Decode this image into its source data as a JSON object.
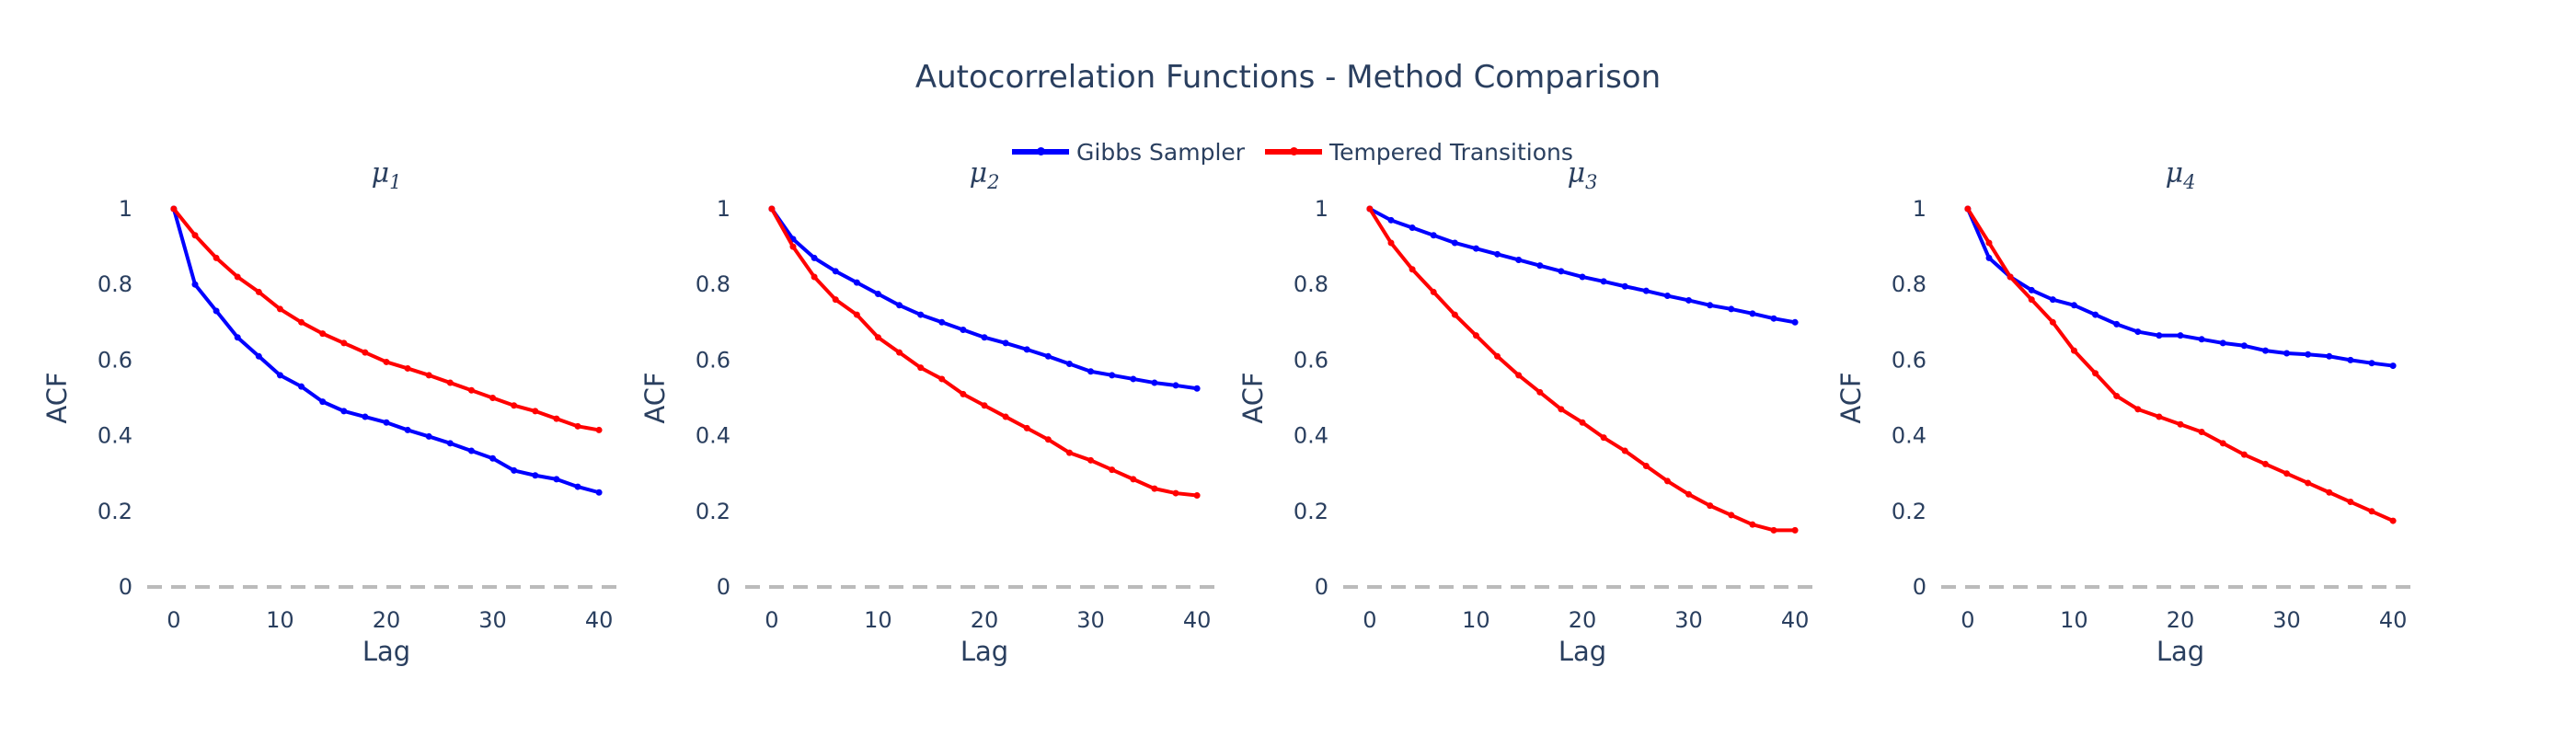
{
  "title": "Autocorrelation Functions - Method Comparison",
  "legend": [
    {
      "name": "Gibbs Sampler",
      "color": "#0000ff"
    },
    {
      "name": "Tempered Transitions",
      "color": "#ff0000"
    }
  ],
  "chart_data": {
    "type": "line",
    "x": [
      0,
      2,
      4,
      6,
      8,
      10,
      12,
      14,
      16,
      18,
      20,
      22,
      24,
      26,
      28,
      30,
      32,
      34,
      36,
      38,
      40
    ],
    "xlabel": "Lag",
    "ylabel": "ACF",
    "xlim": [
      -2.5,
      42.5
    ],
    "ylim": [
      0,
      1
    ],
    "xticks": [
      0,
      10,
      20,
      30,
      40
    ],
    "yticks": [
      0,
      0.2,
      0.4,
      0.6,
      0.8,
      1
    ],
    "ytick_labels": [
      "0",
      "0.2",
      "0.4",
      "0.6",
      "0.8",
      "1"
    ],
    "reference_line": {
      "y": 0,
      "style": "dashed",
      "color": "#bbbbbb"
    },
    "legend_position": "top-center",
    "grid": false,
    "subplots": [
      {
        "title": "μ1",
        "series": [
          {
            "name": "Gibbs Sampler",
            "color": "#0000ff",
            "values": [
              1.0,
              0.8,
              0.73,
              0.66,
              0.61,
              0.56,
              0.53,
              0.49,
              0.465,
              0.45,
              0.435,
              0.415,
              0.398,
              0.38,
              0.36,
              0.34,
              0.308,
              0.295,
              0.285,
              0.265,
              0.25
            ]
          },
          {
            "name": "Tempered Transitions",
            "color": "#ff0000",
            "values": [
              1.0,
              0.93,
              0.87,
              0.82,
              0.78,
              0.735,
              0.7,
              0.67,
              0.645,
              0.62,
              0.595,
              0.578,
              0.56,
              0.54,
              0.52,
              0.5,
              0.48,
              0.465,
              0.445,
              0.425,
              0.415
            ]
          }
        ]
      },
      {
        "title": "μ2",
        "series": [
          {
            "name": "Gibbs Sampler",
            "color": "#0000ff",
            "values": [
              1.0,
              0.92,
              0.87,
              0.835,
              0.805,
              0.775,
              0.745,
              0.72,
              0.7,
              0.68,
              0.66,
              0.645,
              0.628,
              0.61,
              0.59,
              0.57,
              0.56,
              0.55,
              0.54,
              0.533,
              0.525
            ]
          },
          {
            "name": "Tempered Transitions",
            "color": "#ff0000",
            "values": [
              1.0,
              0.9,
              0.82,
              0.76,
              0.72,
              0.66,
              0.62,
              0.58,
              0.55,
              0.51,
              0.48,
              0.45,
              0.42,
              0.39,
              0.355,
              0.335,
              0.31,
              0.285,
              0.26,
              0.248,
              0.242
            ]
          }
        ]
      },
      {
        "title": "μ3",
        "series": [
          {
            "name": "Gibbs Sampler",
            "color": "#0000ff",
            "values": [
              1.0,
              0.97,
              0.95,
              0.93,
              0.91,
              0.895,
              0.88,
              0.865,
              0.85,
              0.835,
              0.82,
              0.808,
              0.795,
              0.783,
              0.77,
              0.758,
              0.745,
              0.735,
              0.723,
              0.71,
              0.7
            ]
          },
          {
            "name": "Tempered Transitions",
            "color": "#ff0000",
            "values": [
              1.0,
              0.91,
              0.84,
              0.78,
              0.72,
              0.665,
              0.61,
              0.56,
              0.515,
              0.47,
              0.435,
              0.395,
              0.36,
              0.32,
              0.28,
              0.245,
              0.215,
              0.19,
              0.165,
              0.15,
              0.15
            ]
          }
        ]
      },
      {
        "title": "μ4",
        "series": [
          {
            "name": "Gibbs Sampler",
            "color": "#0000ff",
            "values": [
              1.0,
              0.87,
              0.82,
              0.785,
              0.76,
              0.745,
              0.72,
              0.695,
              0.675,
              0.665,
              0.665,
              0.655,
              0.645,
              0.638,
              0.625,
              0.618,
              0.615,
              0.61,
              0.6,
              0.592,
              0.585
            ]
          },
          {
            "name": "Tempered Transitions",
            "color": "#ff0000",
            "values": [
              1.0,
              0.91,
              0.82,
              0.76,
              0.7,
              0.625,
              0.565,
              0.505,
              0.47,
              0.45,
              0.43,
              0.41,
              0.38,
              0.35,
              0.325,
              0.3,
              0.275,
              0.25,
              0.225,
              0.2,
              0.175
            ]
          }
        ]
      }
    ]
  }
}
